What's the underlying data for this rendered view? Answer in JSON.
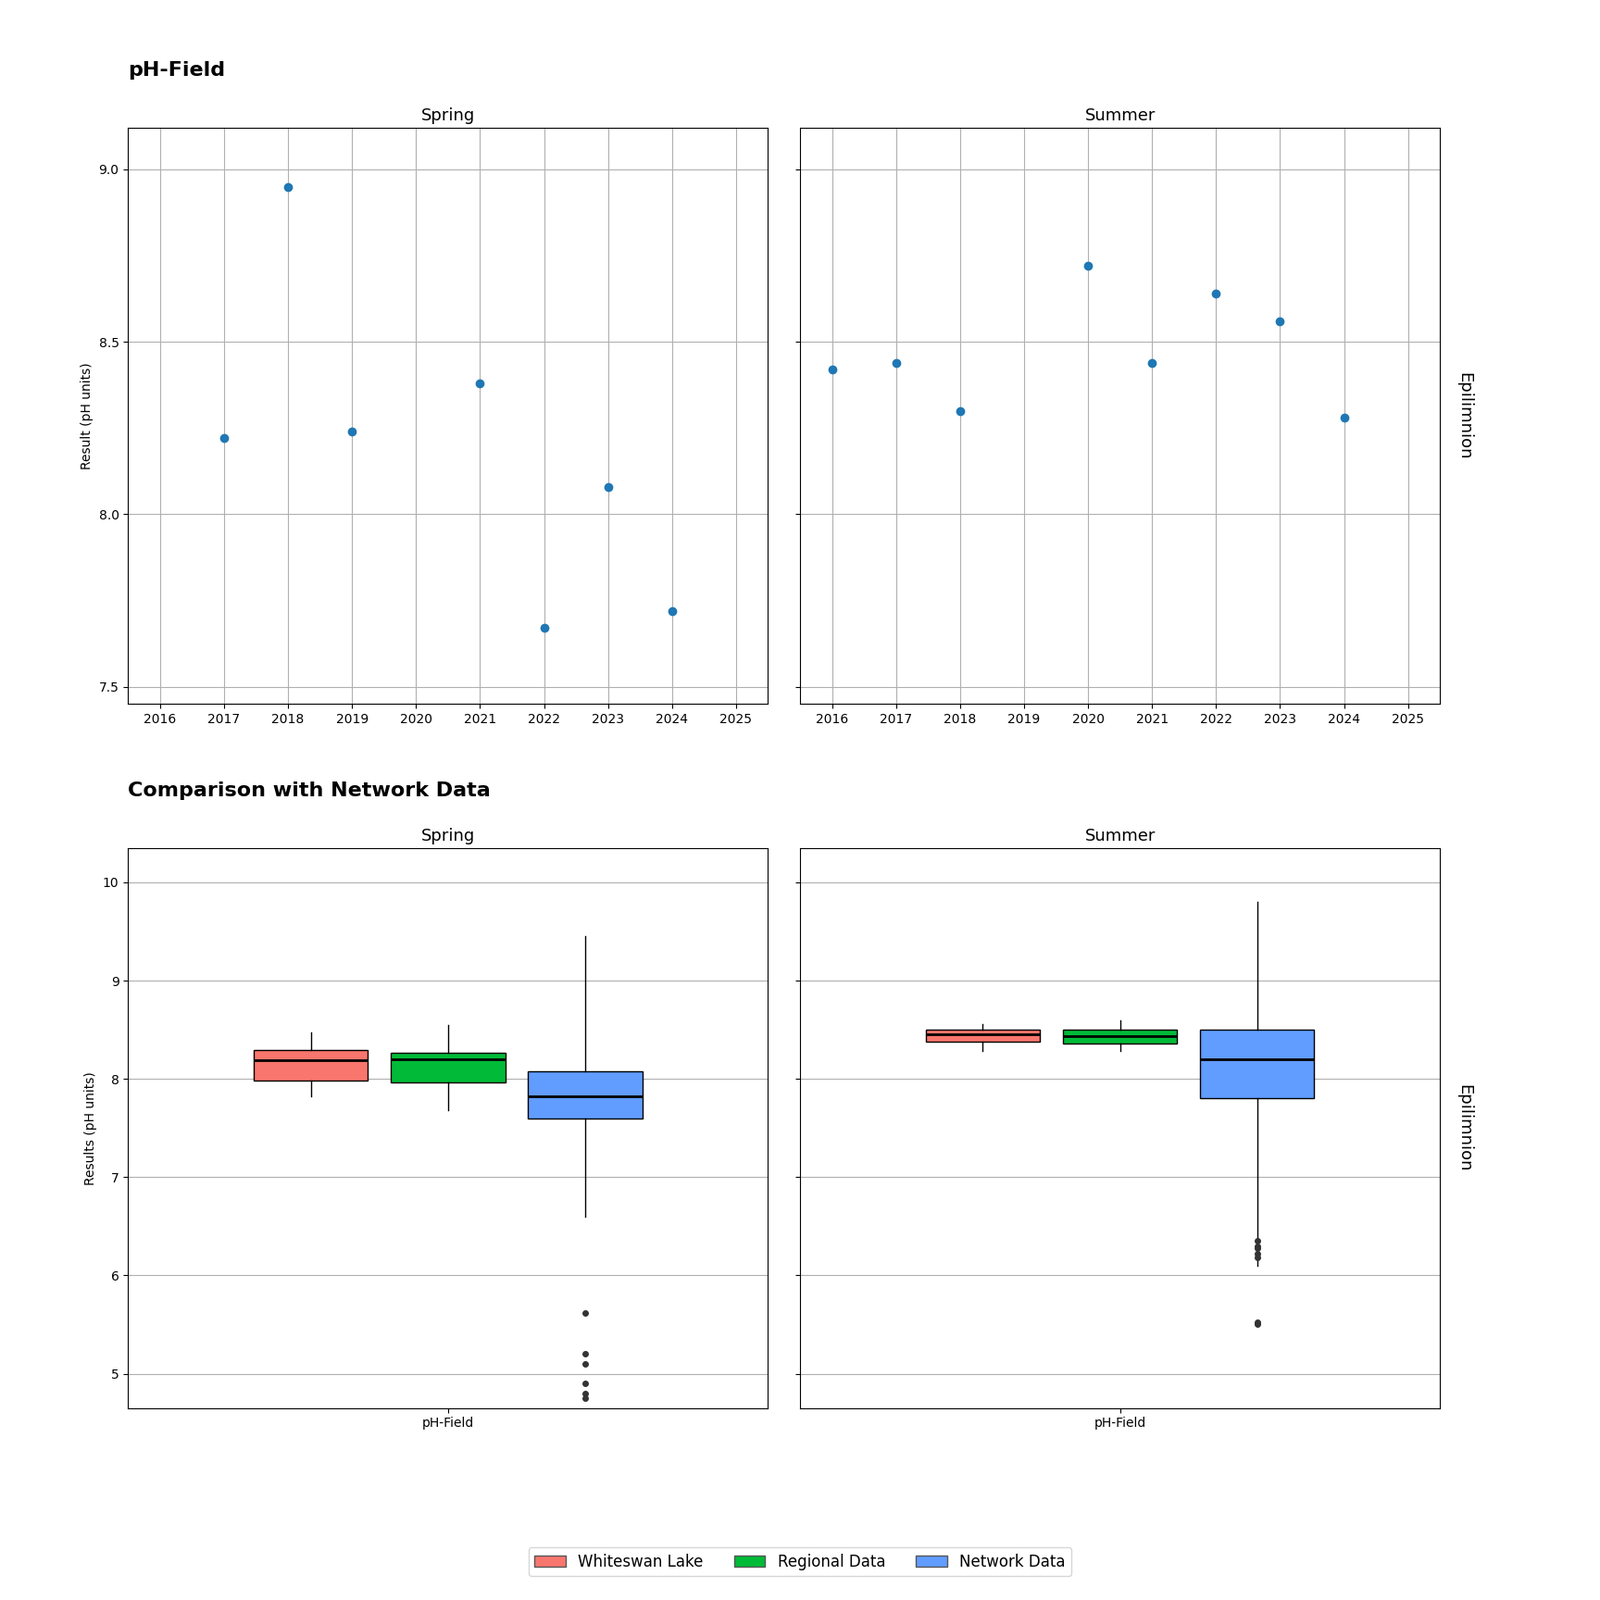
{
  "chart_data": [
    {
      "type": "scatter",
      "title": "pH-Field",
      "ylabel": "Result (pH units)",
      "annotations": [
        "Epilimnion"
      ],
      "xlim": [
        2015.5,
        2025.5
      ],
      "ylim": [
        7.45,
        9.12
      ],
      "xticks": [
        2016,
        2017,
        2018,
        2019,
        2020,
        2021,
        2022,
        2023,
        2024,
        2025
      ],
      "yticks": [
        7.5,
        8.0,
        8.5,
        9.0
      ],
      "grid": true,
      "marker": "o",
      "panels": [
        {
          "title": "Spring",
          "x": [
            2017,
            2018,
            2019,
            2021,
            2022,
            2023,
            2024
          ],
          "values": [
            8.22,
            8.95,
            8.24,
            8.38,
            7.67,
            8.08,
            7.72
          ]
        },
        {
          "title": "Summer",
          "x": [
            2016,
            2017,
            2018,
            2020,
            2021,
            2022,
            2023,
            2024
          ],
          "values": [
            8.42,
            8.44,
            8.3,
            8.72,
            8.44,
            8.64,
            8.56,
            8.28
          ]
        }
      ]
    },
    {
      "type": "box",
      "title": "Comparison with Network Data",
      "ylabel": "Results (pH units)",
      "annotations": [
        "Epilimnion"
      ],
      "categories": [
        "pH-Field"
      ],
      "ylim": [
        4.65,
        10.35
      ],
      "yticks": [
        5,
        6,
        7,
        8,
        9,
        10
      ],
      "grid": "y",
      "legend": "lower center",
      "panels": [
        "Spring",
        "Summer"
      ],
      "series": [
        {
          "name": "Whiteswan Lake",
          "color": "#F8766D",
          "values": [
            {
              "q1": 7.98,
              "median": 8.19,
              "q3": 8.29,
              "whisker_low": 7.82,
              "whisker_high": 8.47,
              "outliers": []
            },
            {
              "q1": 8.38,
              "median": 8.45,
              "q3": 8.5,
              "whisker_low": 8.28,
              "whisker_high": 8.56,
              "outliers": []
            }
          ]
        },
        {
          "name": "Regional Data",
          "color": "#00BA38",
          "values": [
            {
              "q1": 7.96,
              "median": 8.2,
              "q3": 8.27,
              "whisker_low": 7.68,
              "whisker_high": 8.55,
              "outliers": []
            },
            {
              "q1": 8.36,
              "median": 8.44,
              "q3": 8.5,
              "whisker_low": 8.28,
              "whisker_high": 8.6,
              "outliers": []
            }
          ]
        },
        {
          "name": "Network Data",
          "color": "#619CFF",
          "values": [
            {
              "q1": 7.6,
              "median": 7.82,
              "q3": 8.08,
              "whisker_low": 6.6,
              "whisker_high": 9.45,
              "outliers": [
                5.62,
                5.2,
                5.1,
                4.9,
                4.8,
                4.75
              ]
            },
            {
              "q1": 7.8,
              "median": 8.2,
              "q3": 8.5,
              "whisker_low": 6.1,
              "whisker_high": 9.8,
              "outliers": [
                5.5,
                5.52,
                6.18,
                6.22,
                6.28,
                6.3,
                6.35
              ]
            }
          ]
        }
      ]
    }
  ]
}
